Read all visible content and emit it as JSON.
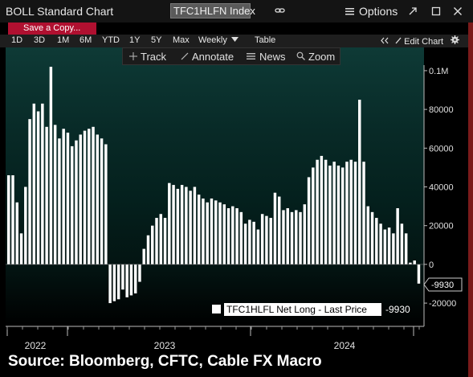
{
  "window": {
    "title": "BOLL Standard Chart",
    "ticker": "TFC1HLFN Index",
    "options_label": "Options"
  },
  "toolbar": {
    "save_label": "Save a Copy...",
    "periods": [
      "1D",
      "3D",
      "1M",
      "6M",
      "YTD",
      "1Y",
      "5Y",
      "Max"
    ],
    "frequency": "Weekly",
    "table_label": "Table",
    "edit_chart_label": "Edit Chart"
  },
  "chart_tools": {
    "track": "Track",
    "annotate": "Annotate",
    "news": "News",
    "zoom": "Zoom"
  },
  "legend": {
    "label": "TFC1HLFL Net Long - Last Price",
    "value": "-9930"
  },
  "source_text": "Source: Bloomberg, CFTC, Cable FX Macro",
  "colors": {
    "bars": "#ffffff",
    "background_top": "#0e3a36",
    "save_button": "#b01030",
    "accent_border": "#7a1a1a"
  },
  "chart_data": {
    "type": "bar",
    "series": [
      {
        "name": "TFC1HLFL Net Long - Last Price",
        "values": [
          46000,
          46000,
          32000,
          16000,
          40000,
          75000,
          83000,
          79000,
          83000,
          71000,
          102000,
          72000,
          65000,
          70000,
          68000,
          61000,
          64000,
          67000,
          69000,
          70000,
          71000,
          67000,
          65000,
          62000,
          -20000,
          -19000,
          -18000,
          -13000,
          -17000,
          -16000,
          -15000,
          -9000,
          8000,
          15000,
          20000,
          24000,
          26000,
          24000,
          42000,
          41000,
          39000,
          41000,
          40000,
          38000,
          40000,
          36000,
          34000,
          32000,
          34000,
          33000,
          32000,
          31000,
          29000,
          30000,
          29000,
          27000,
          21000,
          23000,
          22000,
          18000,
          26000,
          25000,
          24000,
          37000,
          35000,
          28000,
          29000,
          27000,
          28000,
          27000,
          31000,
          45000,
          50000,
          54000,
          56000,
          54000,
          51000,
          53000,
          51000,
          50000,
          53000,
          54000,
          53000,
          85000,
          53000,
          30000,
          27000,
          24000,
          21000,
          18000,
          19000,
          16000,
          29000,
          21000,
          16000,
          900,
          2000,
          -9930
        ]
      }
    ],
    "last_value": -9930,
    "last_value_label": "-9930",
    "xticks": [
      "2022",
      "2023",
      "2024"
    ],
    "yticks": [
      "-20000",
      "0",
      "20000",
      "40000",
      "60000",
      "80000",
      "0.1M"
    ],
    "ylim": [
      -32000,
      112000
    ],
    "grid": false,
    "legend_position": "bottom-right"
  }
}
